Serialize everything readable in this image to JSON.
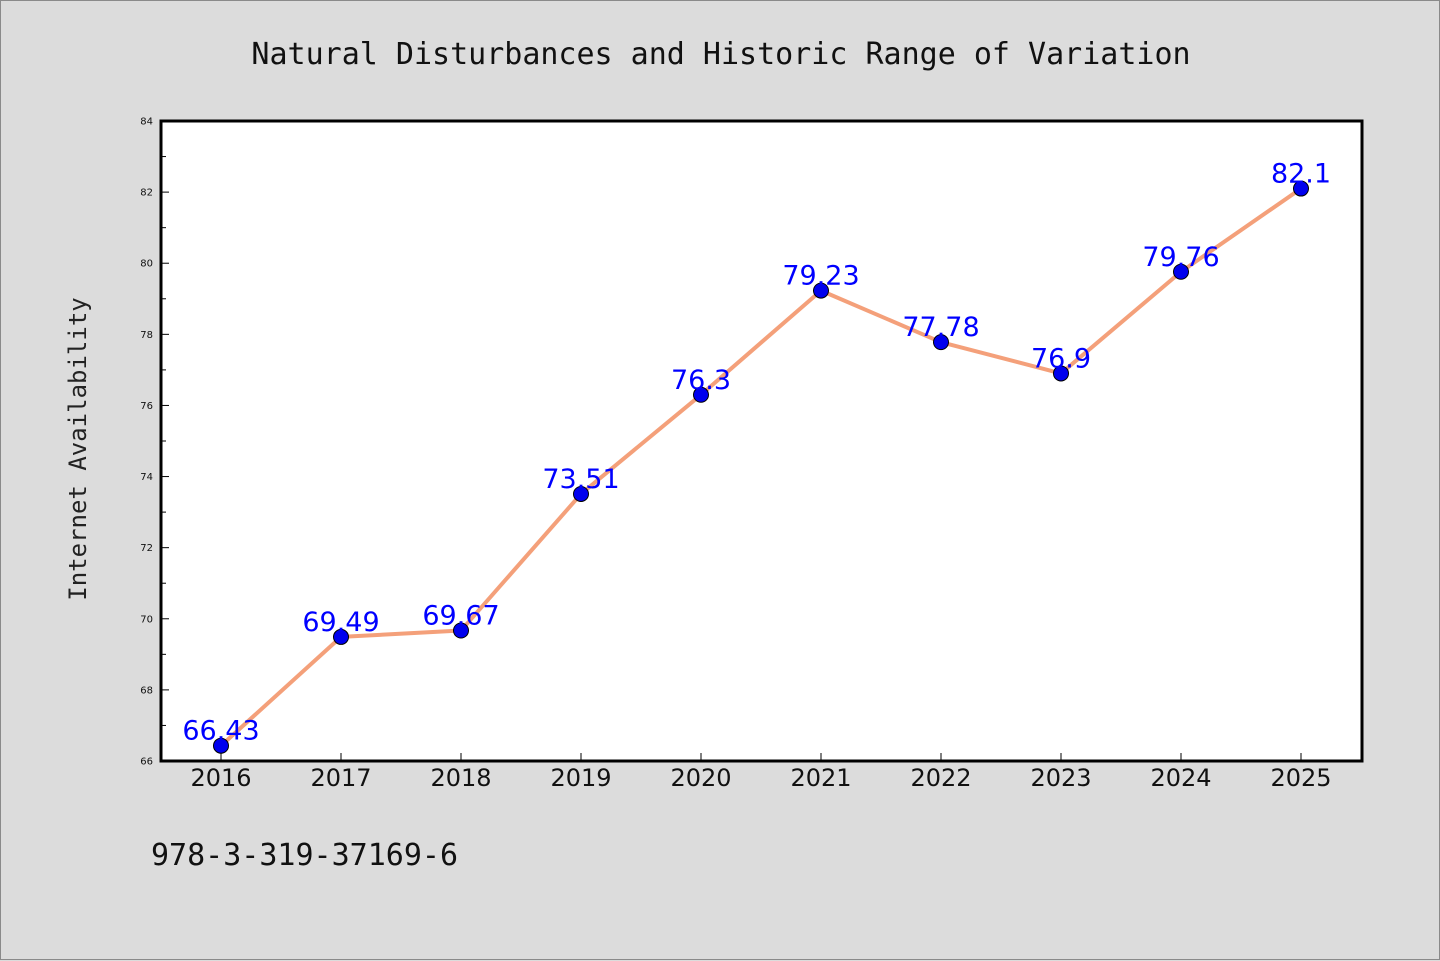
{
  "chart_data": {
    "type": "line",
    "title": "Natural Disturbances and Historic Range of Variation",
    "xlabel": "",
    "ylabel": "Internet Availability",
    "categories": [
      "2016",
      "2017",
      "2018",
      "2019",
      "2020",
      "2021",
      "2022",
      "2023",
      "2024",
      "2025"
    ],
    "series": [
      {
        "values": [
          66.43,
          69.49,
          69.67,
          73.51,
          76.3,
          79.23,
          77.78,
          76.9,
          79.76,
          82.1
        ],
        "data_labels": [
          "66.43",
          "69.49",
          "69.67",
          "73.51",
          "76.3",
          "79.23",
          "77.78",
          "76.9",
          "79.76",
          "82.1"
        ]
      }
    ],
    "ylim": [
      66,
      84
    ],
    "yticks": [
      66,
      68,
      70,
      72,
      74,
      76,
      78,
      80,
      82,
      84
    ],
    "grid": false,
    "legend": "none",
    "colors": {
      "line": "#f4a07a",
      "marker": "#0000ee",
      "marker_edge": "#000000",
      "data_label": "#0000ff",
      "plot_bg": "#ffffff",
      "page_bg": "#dcdcdc"
    }
  },
  "footer_text": "978-3-319-37169-6"
}
